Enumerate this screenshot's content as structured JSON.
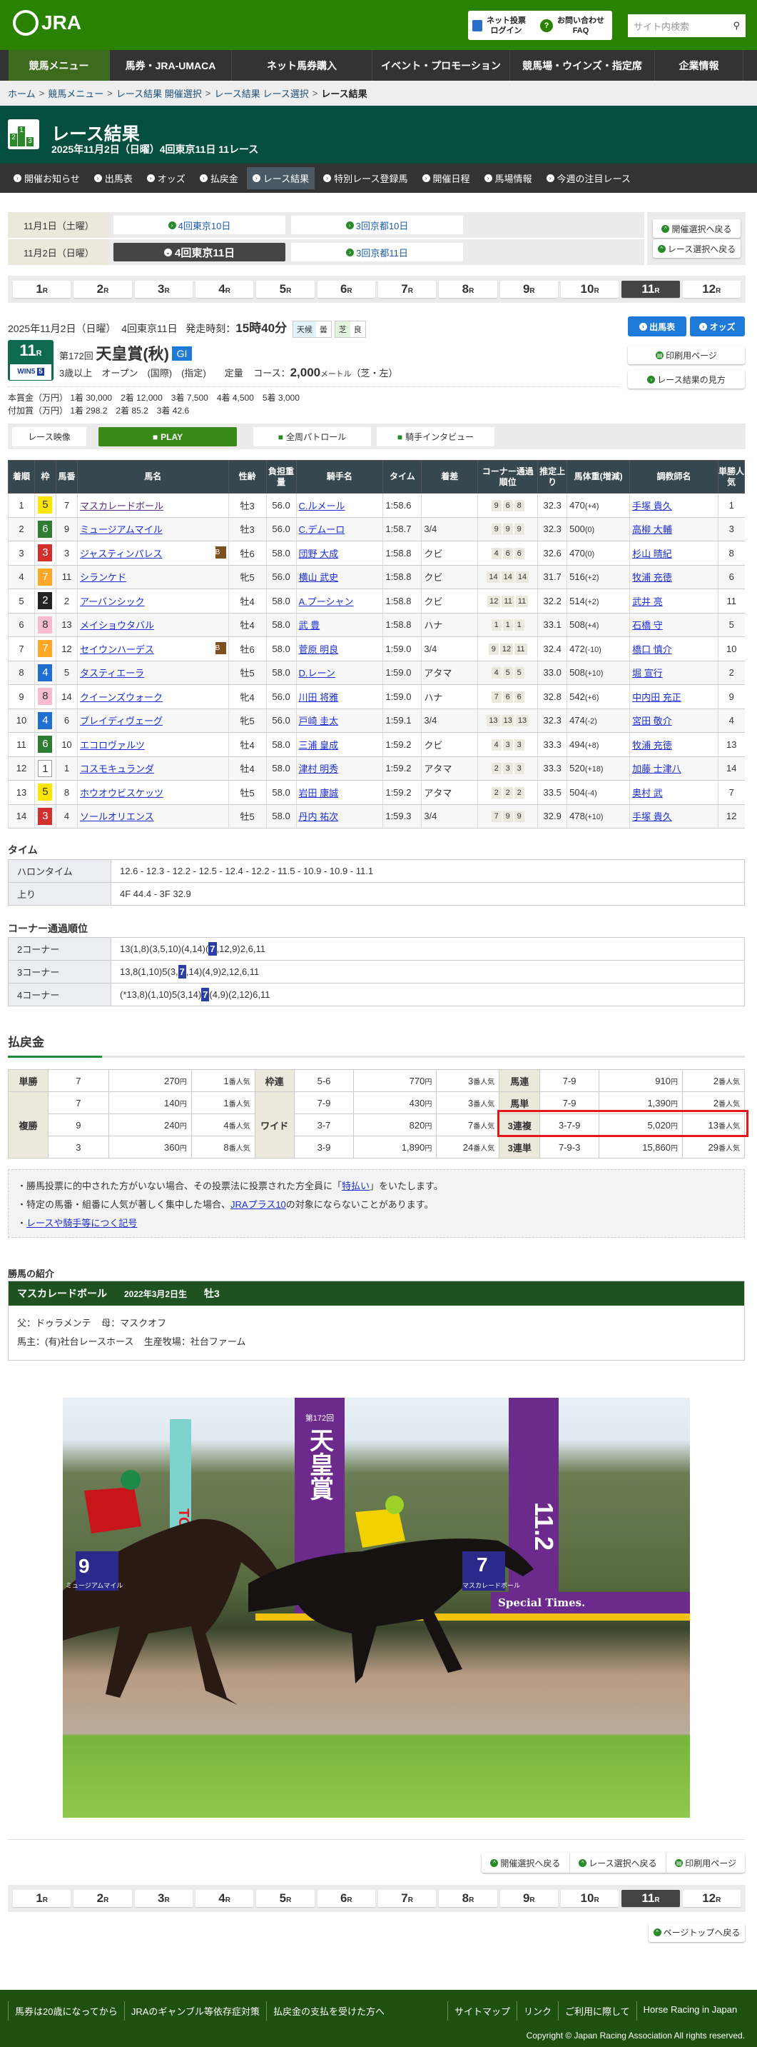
{
  "header": {
    "logo": "JRA",
    "login_line1": "ネット投票",
    "login_line2": "ログイン",
    "faq_line1": "お問い合わせ",
    "faq_line2": "FAQ",
    "search_placeholder": "サイト内検索"
  },
  "nav": [
    "競馬メニュー",
    "馬券・JRA-UMACA",
    "ネット馬券購入",
    "イベント・プロモーション",
    "競馬場・ウインズ・指定席",
    "企業情報"
  ],
  "breadcrumb": [
    "ホーム",
    "競馬メニュー",
    "レース結果 開催選択",
    "レース結果 レース選択",
    "レース結果"
  ],
  "title": {
    "heading": "レース結果",
    "sub": "2025年11月2日（日曜）4回東京11日 11レース"
  },
  "subnav": [
    "開催お知らせ",
    "出馬表",
    "オッズ",
    "払戻金",
    "レース結果",
    "特別レース登録馬",
    "開催日程",
    "馬場情報",
    "今週の注目レース"
  ],
  "meetings": {
    "day1": "11月1日（土曜）",
    "day1_a": "4回東京10日",
    "day1_b": "3回京都10日",
    "day2": "11月2日（日曜）",
    "day2_a": "4回東京11日",
    "day2_b": "3回京都11日",
    "back_kaisai": "開催選択へ戻る",
    "back_race": "レース選択へ戻る"
  },
  "races": [
    "1",
    "2",
    "3",
    "4",
    "5",
    "6",
    "7",
    "8",
    "9",
    "10",
    "11",
    "12"
  ],
  "race_unit": "R",
  "current_race": "11",
  "race": {
    "date": "2025年11月2日（日曜）",
    "meeting": "4回東京11日",
    "start_label": "発走時刻：",
    "start_time": "15時40分",
    "weather_label": "天候",
    "weather": "曇",
    "track_label": "芝",
    "track": "良",
    "num": "11",
    "num_unit": "R",
    "win5": "WIN5",
    "win5_leg": "5",
    "kai": "第172回",
    "name": "天皇賞(秋)",
    "grade": "GI",
    "cond": "3歳以上　オープン　(国際)　(指定)　　定量",
    "course_label": "コース：",
    "distance": "2,000",
    "dist_unit": "メートル",
    "surface": "（芝・左）",
    "prize_label": "本賞金（万円）",
    "prize": "1着 30,000　2着 12,000　3着 7,500　4着 4,500　5着 3,000",
    "addprize_label": "付加賞（万円）",
    "addprize": "1着 298.2　2着 85.2　3着 42.6"
  },
  "buttons": {
    "shutuba": "出馬表",
    "odds": "オッズ",
    "print": "印刷用ページ",
    "howto": "レース結果の見方",
    "page_top": "ページトップへ戻る"
  },
  "video": {
    "label": "レース映像",
    "play": "PLAY",
    "patrol": "全周パトロール",
    "interview": "騎手インタビュー"
  },
  "colors": {
    "green": "#2a8300",
    "dark_green": "#044e3f",
    "waku": {
      "1": "#ffffff",
      "2": "#222222",
      "3": "#d32f2f",
      "4": "#1e6fd0",
      "5": "#ffe600",
      "6": "#2e7d32",
      "7": "#ffa726",
      "8": "#f8bbd0"
    }
  },
  "results": {
    "headers": [
      "着順",
      "枠",
      "馬番",
      "馬名",
      "性齢",
      "負担重量",
      "騎手名",
      "タイム",
      "着差",
      "コーナー通過順位",
      "推定上り",
      "馬体重(増減)",
      "調教師名",
      "単勝人気"
    ],
    "rows": [
      [
        "1",
        "5",
        "7",
        "マスカレードボール",
        "",
        "牡3",
        "56.0",
        "C.ルメール",
        "1:58.6",
        "",
        [
          "9",
          "6",
          "8"
        ],
        "32.3",
        "470",
        "(+4)",
        "手塚 貴久",
        "1"
      ],
      [
        "2",
        "6",
        "9",
        "ミュージアムマイル",
        "",
        "牡3",
        "56.0",
        "C.デムーロ",
        "1:58.7",
        "3/4",
        [
          "9",
          "9",
          "9"
        ],
        "32.3",
        "500",
        "(0)",
        "高柳 大輔",
        "3"
      ],
      [
        "3",
        "3",
        "3",
        "ジャスティンパレス",
        "B",
        "牡6",
        "58.0",
        "団野 大成",
        "1:58.8",
        "クビ",
        [
          "4",
          "6",
          "6"
        ],
        "32.6",
        "470",
        "(0)",
        "杉山 晴紀",
        "8"
      ],
      [
        "4",
        "7",
        "11",
        "シランケド",
        "",
        "牝5",
        "56.0",
        "横山 武史",
        "1:58.8",
        "クビ",
        [
          "14",
          "14",
          "14"
        ],
        "31.7",
        "516",
        "(+2)",
        "牧浦 充徳",
        "6"
      ],
      [
        "5",
        "2",
        "2",
        "アーバンシック",
        "",
        "牡4",
        "58.0",
        "A.プーシャン",
        "1:58.8",
        "クビ",
        [
          "12",
          "11",
          "11"
        ],
        "32.2",
        "514",
        "(+2)",
        "武井 亮",
        "11"
      ],
      [
        "6",
        "8",
        "13",
        "メイショウタバル",
        "",
        "牡4",
        "58.0",
        "武 豊",
        "1:58.8",
        "ハナ",
        [
          "1",
          "1",
          "1"
        ],
        "33.1",
        "508",
        "(+4)",
        "石橋 守",
        "5"
      ],
      [
        "7",
        "7",
        "12",
        "セイウンハーデス",
        "B",
        "牡6",
        "58.0",
        "菅原 明良",
        "1:59.0",
        "3/4",
        [
          "9",
          "12",
          "11"
        ],
        "32.4",
        "472",
        "(-10)",
        "橋口 慎介",
        "10"
      ],
      [
        "8",
        "4",
        "5",
        "タスティエーラ",
        "",
        "牡5",
        "58.0",
        "D.レーン",
        "1:59.0",
        "アタマ",
        [
          "4",
          "5",
          "5"
        ],
        "33.0",
        "508",
        "(+10)",
        "堀 宣行",
        "2"
      ],
      [
        "9",
        "8",
        "14",
        "クイーンズウォーク",
        "",
        "牝4",
        "56.0",
        "川田 将雅",
        "1:59.0",
        "ハナ",
        [
          "7",
          "6",
          "6"
        ],
        "32.8",
        "542",
        "(+6)",
        "中内田 充正",
        "9"
      ],
      [
        "10",
        "4",
        "6",
        "ブレイディヴェーグ",
        "",
        "牝5",
        "56.0",
        "戸崎 圭太",
        "1:59.1",
        "3/4",
        [
          "13",
          "13",
          "13"
        ],
        "32.3",
        "474",
        "(-2)",
        "宮田 敬介",
        "4"
      ],
      [
        "11",
        "6",
        "10",
        "エコロヴァルツ",
        "",
        "牡4",
        "58.0",
        "三浦 皇成",
        "1:59.2",
        "クビ",
        [
          "4",
          "3",
          "3"
        ],
        "33.3",
        "494",
        "(+8)",
        "牧浦 充徳",
        "13"
      ],
      [
        "12",
        "1",
        "1",
        "コスモキュランダ",
        "",
        "牡4",
        "58.0",
        "津村 明秀",
        "1:59.2",
        "アタマ",
        [
          "2",
          "3",
          "3"
        ],
        "33.3",
        "520",
        "(+18)",
        "加藤 士津八",
        "14"
      ],
      [
        "13",
        "5",
        "8",
        "ホウオウビスケッツ",
        "",
        "牡5",
        "58.0",
        "岩田 康誠",
        "1:59.2",
        "アタマ",
        [
          "2",
          "2",
          "2"
        ],
        "33.5",
        "504",
        "(-4)",
        "奥村 武",
        "7"
      ],
      [
        "14",
        "3",
        "4",
        "ソールオリエンス",
        "",
        "牡5",
        "58.0",
        "丹内 祐次",
        "1:59.3",
        "3/4",
        [
          "7",
          "9",
          "9"
        ],
        "32.9",
        "478",
        "(+10)",
        "手塚 貴久",
        "12"
      ]
    ]
  },
  "time": {
    "title": "タイム",
    "furlong_label": "ハロンタイム",
    "furlong": "12.6 - 12.3 - 12.2 - 12.5 - 12.4 - 12.2 - 11.5 - 10.9 - 10.9 - 11.1",
    "last_label": "上り",
    "last": "4F 44.4 - 3F 32.9"
  },
  "corners": {
    "title": "コーナー通過順位",
    "rows": [
      {
        "label": "2コーナー",
        "pre": "13(1,8)(3,5,10)(4,14)(",
        "hl": "7",
        "post": ",12,9)2,6,11"
      },
      {
        "label": "3コーナー",
        "pre": "13,8(1,10)5(3,",
        "hl": "7",
        "post": ",14)(4,9)2,12,6,11"
      },
      {
        "label": "4コーナー",
        "pre": "(*13,8)(1,10)5(3,14)",
        "hl": "7",
        "post": "(4,9)(2,12)6,11"
      }
    ]
  },
  "payout": {
    "title": "払戻金",
    "yen": "円",
    "ninki_suffix": "番人気",
    "tansho": {
      "label": "単勝",
      "rows": [
        [
          "7",
          "270",
          "1"
        ]
      ]
    },
    "fukusho": {
      "label": "複勝",
      "rows": [
        [
          "7",
          "140",
          "1"
        ],
        [
          "9",
          "240",
          "4"
        ],
        [
          "3",
          "360",
          "8"
        ]
      ]
    },
    "wakuren": {
      "label": "枠連",
      "rows": [
        [
          "5-6",
          "770",
          "3"
        ]
      ]
    },
    "wide": {
      "label": "ワイド",
      "rows": [
        [
          "7-9",
          "430",
          "3"
        ],
        [
          "3-7",
          "820",
          "7"
        ],
        [
          "3-9",
          "1,890",
          "24"
        ]
      ]
    },
    "umaren": {
      "label": "馬連",
      "rows": [
        [
          "7-9",
          "910",
          "2"
        ]
      ]
    },
    "umatan": {
      "label": "馬単",
      "rows": [
        [
          "7-9",
          "1,390",
          "2"
        ]
      ]
    },
    "sanrenpuku": {
      "label": "3連複",
      "rows": [
        [
          "3-7-9",
          "5,020",
          "13"
        ]
      ]
    },
    "sanrentan": {
      "label": "3連単",
      "rows": [
        [
          "7-9-3",
          "15,860",
          "29"
        ]
      ]
    },
    "highlight_color": "#e8161b"
  },
  "notes": {
    "n1_pre": "勝馬投票に的中された方がいない場合、その投票法に投票された方全員に「",
    "n1_link": "特払い",
    "n1_post": "」をいたします。",
    "n2_pre": "特定の馬番・組番に人気が著しく集中した場合、",
    "n2_link": "JRAプラス10",
    "n2_post": "の対象にならないことがあります。",
    "n3_link": "レースや騎手等につく記号"
  },
  "winner": {
    "title": "勝馬の紹介",
    "name": "マスカレードボール",
    "birth": "2022年3月2日生",
    "sex_age": "牡3",
    "sire": "父：ドゥラメンテ",
    "dam": "母：マスクオフ",
    "owner": "馬主：(有)社台レースホース",
    "breeder": "生産牧場：社台ファーム"
  },
  "photo": {
    "banner_kai": "第172回",
    "banner_name": "天皇賞",
    "banner_date": "11.2",
    "tokyo": "TOKYO",
    "rail": "Special Times.",
    "cloth1": "7",
    "cloth1_name": "マスカレードボール",
    "cloth2": "9",
    "cloth2_name": "ミュージアムマイル"
  },
  "footer": {
    "left": [
      "馬券は20歳になってから",
      "JRAのギャンブル等依存症対策",
      "払戻金の支払を受けた方へ"
    ],
    "right": [
      "サイトマップ",
      "リンク",
      "ご利用に際して",
      "Horse Racing in Japan"
    ],
    "copyright": "Copyright © Japan Racing Association All rights reserved."
  }
}
